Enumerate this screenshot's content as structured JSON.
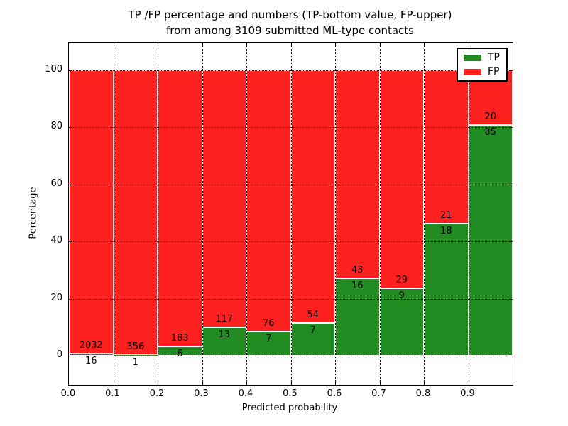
{
  "title": {
    "line1": "TP /FP percentage and numbers (TP-bottom value, FP-upper)",
    "line2": "from among 3109 submitted ML-type contacts"
  },
  "chart_data": {
    "type": "bar",
    "stacked": true,
    "normalized_to": 100,
    "title": "TP /FP percentage and numbers (TP-bottom value, FP-upper) from among 3109 submitted ML-type contacts",
    "xlabel": "Predicted probability",
    "ylabel": "Percentage",
    "xlim": [
      0.0,
      1.0
    ],
    "ylim": [
      -10.5,
      110
    ],
    "grid": "dotted",
    "legend_position": "upper right",
    "x_tick_labels": [
      "0.0",
      "0.1",
      "0.2",
      "0.3",
      "0.4",
      "0.5",
      "0.6",
      "0.7",
      "0.8",
      "0.9"
    ],
    "y_ticks": [
      0,
      20,
      40,
      60,
      80,
      100
    ],
    "bin_edges": [
      0.0,
      0.1,
      0.2,
      0.3,
      0.4,
      0.5,
      0.6,
      0.7,
      0.8,
      0.9,
      1.0
    ],
    "series": [
      {
        "name": "TP",
        "color": "#228b22",
        "counts": [
          16,
          1,
          6,
          13,
          7,
          7,
          16,
          9,
          18,
          85
        ]
      },
      {
        "name": "FP",
        "color": "#ff2020",
        "counts": [
          2032,
          356,
          183,
          117,
          76,
          54,
          43,
          29,
          21,
          20
        ]
      }
    ],
    "tp_percent": [
      0.78,
      0.28,
      3.17,
      10.0,
      8.43,
      11.48,
      27.12,
      23.68,
      46.15,
      80.95
    ],
    "total_contacts": 3109,
    "legend": {
      "entries": [
        {
          "label": "TP",
          "color": "#228b22"
        },
        {
          "label": "FP",
          "color": "#ff2020"
        }
      ]
    }
  }
}
